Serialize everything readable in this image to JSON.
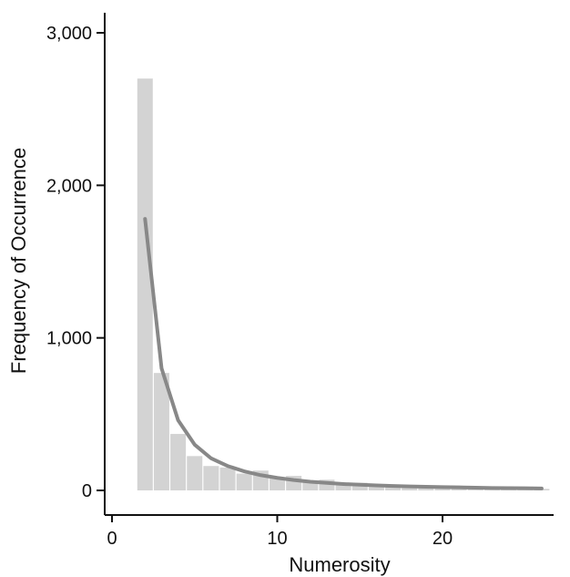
{
  "chart_data": {
    "type": "bar",
    "title": "",
    "xlabel": "Numerosity",
    "ylabel": "Frequency of Occurrence",
    "xlim": [
      0,
      26
    ],
    "ylim": [
      0,
      3000
    ],
    "x_ticks": [
      0,
      10,
      20
    ],
    "x_tick_labels": [
      "0",
      "10",
      "20"
    ],
    "y_ticks": [
      0,
      1000,
      2000,
      3000
    ],
    "y_tick_labels": [
      "0",
      "1,000",
      "2,000",
      "3,000"
    ],
    "grid": false,
    "legend": "none",
    "bars": {
      "x": [
        2,
        3,
        4,
        5,
        6,
        7,
        8,
        9,
        10,
        11,
        12,
        13,
        14,
        15,
        16,
        17,
        18,
        19,
        20,
        21,
        22,
        23,
        24,
        25,
        26
      ],
      "values": [
        2700,
        770,
        370,
        225,
        160,
        150,
        110,
        130,
        80,
        95,
        60,
        70,
        45,
        50,
        35,
        35,
        25,
        25,
        20,
        20,
        15,
        15,
        15,
        10,
        10
      ],
      "color": "#d3d3d3"
    },
    "fit_curve": {
      "x": [
        2,
        3,
        4,
        5,
        6,
        7,
        8,
        9,
        10,
        11,
        12,
        13,
        14,
        15,
        16,
        17,
        18,
        19,
        20,
        21,
        22,
        23,
        24,
        25,
        26
      ],
      "values": [
        1780,
        800,
        460,
        300,
        210,
        160,
        125,
        100,
        82,
        68,
        57,
        49,
        42,
        37,
        33,
        29,
        26,
        24,
        22,
        20,
        18,
        16,
        15,
        14,
        13
      ],
      "color": "#888888"
    }
  }
}
